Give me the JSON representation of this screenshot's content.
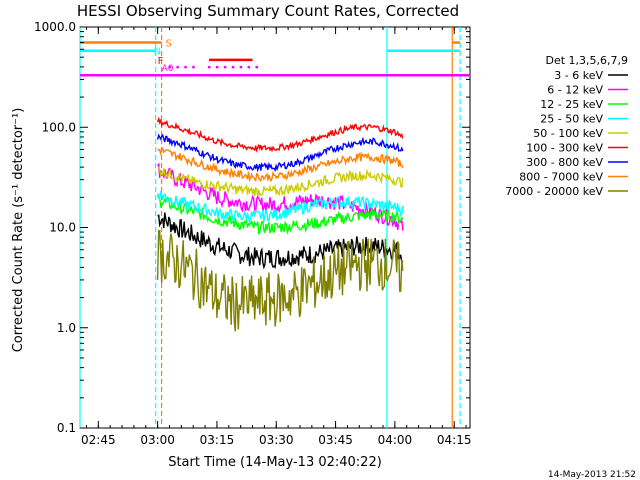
{
  "chart_data": {
    "type": "line",
    "title": "HESSI Observing Summary Count Rates, Corrected",
    "xlabel": "Start Time (14-May-13 02:40:22)",
    "ylabel": "Corrected Count Rate (s⁻¹ detector⁻¹)",
    "yscale": "log",
    "xlim": [
      "02:40:22",
      "04:19:00"
    ],
    "ylim": [
      0.1,
      1000.0
    ],
    "x_ticks": [
      "02:45",
      "03:00",
      "03:15",
      "03:30",
      "03:45",
      "04:00",
      "04:15"
    ],
    "y_ticks": [
      "0.1",
      "1.0",
      "10.0",
      "100.0",
      "1000.0"
    ],
    "legend": {
      "title": "Det 1,3,5,6,7,9",
      "position": "right-outside"
    },
    "series": [
      {
        "name": "3 - 6 keV",
        "color": "#000000",
        "x": [
          "03:00",
          "03:05",
          "03:10",
          "03:15",
          "03:20",
          "03:25",
          "03:30",
          "03:35",
          "03:40",
          "03:45",
          "03:50",
          "03:55",
          "04:00",
          "04:02"
        ],
        "y": [
          13,
          10,
          8,
          6.5,
          5.5,
          5,
          5,
          5.2,
          5.5,
          6,
          6.5,
          6.5,
          6,
          5.5
        ]
      },
      {
        "name": "6 - 12 keV",
        "color": "#ff00ff",
        "x": [
          "03:00",
          "03:05",
          "03:10",
          "03:15",
          "03:20",
          "03:25",
          "03:30",
          "03:35",
          "03:40",
          "03:45",
          "03:50",
          "03:55",
          "04:00",
          "04:02"
        ],
        "y": [
          38,
          30,
          25,
          20,
          18,
          17,
          17,
          18,
          19,
          18,
          16,
          14,
          12,
          10
        ]
      },
      {
        "name": "12 - 25 keV",
        "color": "#00ff00",
        "x": [
          "03:00",
          "03:05",
          "03:10",
          "03:15",
          "03:20",
          "03:25",
          "03:30",
          "03:35",
          "03:40",
          "03:45",
          "03:50",
          "03:55",
          "04:00",
          "04:02"
        ],
        "y": [
          19,
          16,
          14,
          12,
          11,
          10,
          10,
          10.5,
          11,
          12,
          13,
          13.5,
          13,
          12
        ]
      },
      {
        "name": "25 - 50 keV",
        "color": "#00ffff",
        "x": [
          "03:00",
          "03:05",
          "03:10",
          "03:15",
          "03:20",
          "03:25",
          "03:30",
          "03:35",
          "03:40",
          "03:45",
          "03:50",
          "03:55",
          "04:00",
          "04:02"
        ],
        "y": [
          22,
          18,
          16,
          14,
          13,
          13,
          13.5,
          15,
          17,
          18,
          18,
          17,
          16,
          15
        ]
      },
      {
        "name": "50 - 100 keV",
        "color": "#cccc00",
        "x": [
          "03:00",
          "03:05",
          "03:10",
          "03:15",
          "03:20",
          "03:25",
          "03:30",
          "03:35",
          "03:40",
          "03:45",
          "03:50",
          "03:55",
          "04:00",
          "04:02"
        ],
        "y": [
          38,
          32,
          28,
          26,
          24,
          23,
          23,
          25,
          28,
          31,
          33,
          33,
          30,
          28
        ]
      },
      {
        "name": "100 - 300 keV",
        "color": "#ff0000",
        "x": [
          "03:00",
          "03:05",
          "03:10",
          "03:15",
          "03:20",
          "03:25",
          "03:30",
          "03:35",
          "03:40",
          "03:45",
          "03:50",
          "03:55",
          "04:00",
          "04:02"
        ],
        "y": [
          115,
          100,
          85,
          72,
          65,
          62,
          62,
          67,
          78,
          90,
          100,
          100,
          90,
          80
        ]
      },
      {
        "name": "300 - 800 keV",
        "color": "#0000ff",
        "x": [
          "03:00",
          "03:05",
          "03:10",
          "03:15",
          "03:20",
          "03:25",
          "03:30",
          "03:35",
          "03:40",
          "03:45",
          "03:50",
          "03:55",
          "04:00",
          "04:02"
        ],
        "y": [
          80,
          70,
          58,
          48,
          42,
          40,
          40,
          44,
          52,
          62,
          70,
          72,
          65,
          58
        ]
      },
      {
        "name": "800 - 7000 keV",
        "color": "#ff8000",
        "x": [
          "03:00",
          "03:05",
          "03:10",
          "03:15",
          "03:20",
          "03:25",
          "03:30",
          "03:35",
          "03:40",
          "03:45",
          "03:50",
          "03:55",
          "04:00",
          "04:02"
        ],
        "y": [
          60,
          52,
          44,
          38,
          34,
          32,
          32,
          35,
          40,
          45,
          50,
          50,
          46,
          42
        ]
      },
      {
        "name": "7000 - 20000 keV",
        "color": "#808000",
        "x": [
          "03:00",
          "03:05",
          "03:10",
          "03:15",
          "03:20",
          "03:25",
          "03:30",
          "03:35",
          "03:40",
          "03:45",
          "03:50",
          "03:55",
          "04:00",
          "04:02"
        ],
        "y": [
          5.5,
          4.5,
          3.2,
          2.0,
          1.7,
          1.8,
          1.9,
          2.2,
          2.8,
          3.5,
          4.2,
          4.5,
          4.2,
          3.5
        ]
      }
    ],
    "vlines": [
      {
        "x": "02:40:22",
        "color": "#00ffff",
        "style": "solid"
      },
      {
        "x": "02:59:30",
        "color": "#00ffff",
        "style": "dashed"
      },
      {
        "x": "03:01:00",
        "color": "#ff8000",
        "style": "dashed"
      },
      {
        "x": "03:58:00",
        "color": "#00ffff",
        "style": "solid"
      },
      {
        "x": "04:14:30",
        "color": "#ff8000",
        "style": "solid"
      },
      {
        "x": "04:16:30",
        "color": "#00ffff",
        "style": "dashed"
      }
    ],
    "flag_bars": [
      {
        "label": "S",
        "color": "#ff8000",
        "y": 700,
        "segments": [
          [
            "02:40:22",
            "03:01:00"
          ],
          [
            "04:14:30",
            "04:16:30"
          ]
        ]
      },
      {
        "label": "N",
        "color": "#00ffff",
        "y": 580,
        "segments": [
          [
            "02:40:22",
            "02:59:30"
          ],
          [
            "03:58:00",
            "04:16:30"
          ]
        ]
      },
      {
        "label": "F",
        "color": "#ff0000",
        "y": 470,
        "segments": [
          [
            "03:13:00",
            "03:24:00"
          ]
        ]
      },
      {
        "label": "",
        "color": "#ff00ff",
        "y": 330,
        "segments": [
          [
            "02:40:22",
            "04:19:00"
          ]
        ]
      }
    ],
    "attenuator": {
      "label": "A0",
      "color": "#ff00ff",
      "y": 400,
      "points": [
        "03:03",
        "03:05",
        "03:07",
        "03:09",
        "03:13",
        "03:15",
        "03:17",
        "03:19",
        "03:21",
        "03:23",
        "03:25"
      ]
    },
    "timestamp": "14-May-2013 21:52"
  }
}
